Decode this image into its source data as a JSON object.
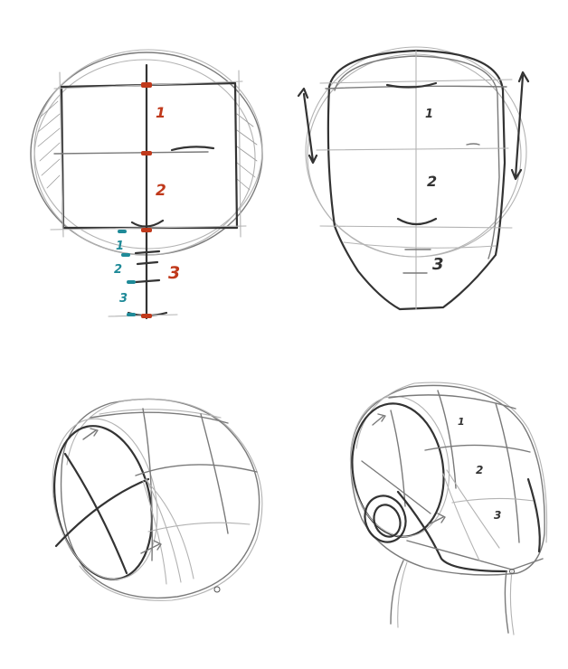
{
  "colors": {
    "accent_red": "#c0391b",
    "accent_teal": "#1f8a98",
    "pencil": "#4a4a4a"
  },
  "panel_front_construction": {
    "red_labels": [
      "1",
      "2",
      "3"
    ],
    "teal_labels": [
      "1",
      "2",
      "3"
    ]
  },
  "panel_front_head": {
    "labels": [
      "1",
      "2",
      "3"
    ]
  },
  "panel_three_quarter_head": {
    "labels": [
      "1",
      "2",
      "3"
    ]
  }
}
